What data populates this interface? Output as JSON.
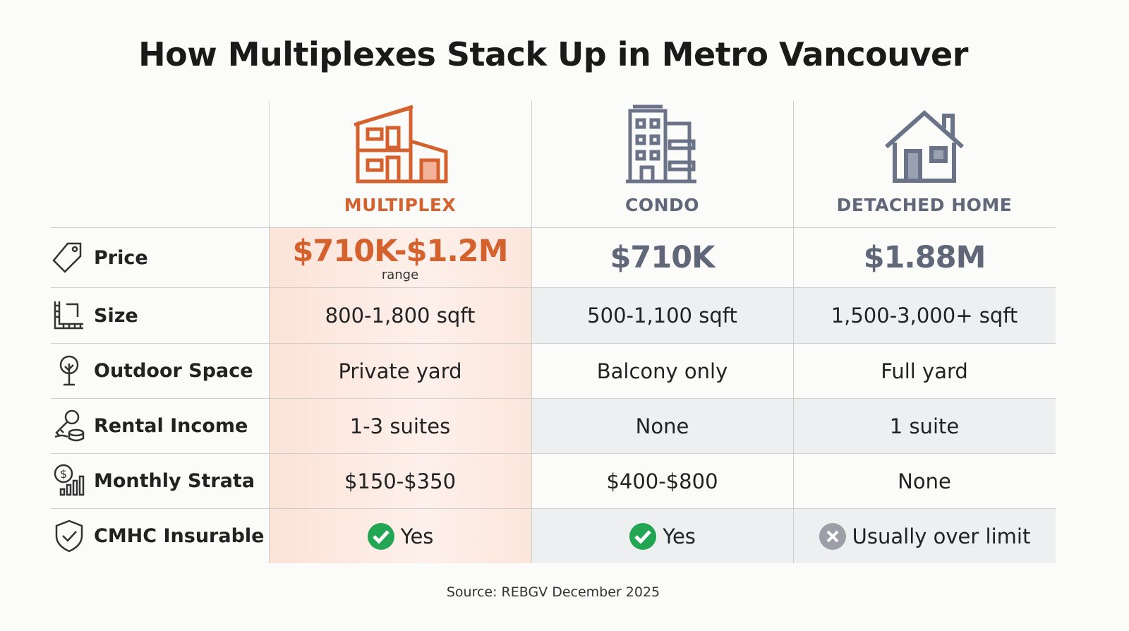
{
  "title": "How Multiplexes Stack Up in Metro Vancouver",
  "table": {
    "columns": [
      "MULTIPLEX",
      "CONDO",
      "DETACHED HOME"
    ],
    "rows": [
      {
        "label": "Price",
        "cells": [
          "$710K-$1.2M",
          "$710K",
          "$1.88M"
        ],
        "note": "range"
      },
      {
        "label": "Size",
        "cells": [
          "800-1,800 sqft",
          "500-1,100 sqft",
          "1,500-3,000+ sqft"
        ]
      },
      {
        "label": "Outdoor Space",
        "cells": [
          "Private yard",
          "Balcony only",
          "Full yard"
        ]
      },
      {
        "label": "Rental Income",
        "cells": [
          "1-3 suites",
          "None",
          "1 suite"
        ]
      },
      {
        "label": "Monthly Strata",
        "cells": [
          "$150-$350",
          "$400-$800",
          "None"
        ]
      },
      {
        "label": "CMHC Insurable",
        "cells": [
          "Yes",
          "Yes",
          "Usually over limit"
        ]
      }
    ]
  },
  "source": "Source: REBGV December 2025"
}
